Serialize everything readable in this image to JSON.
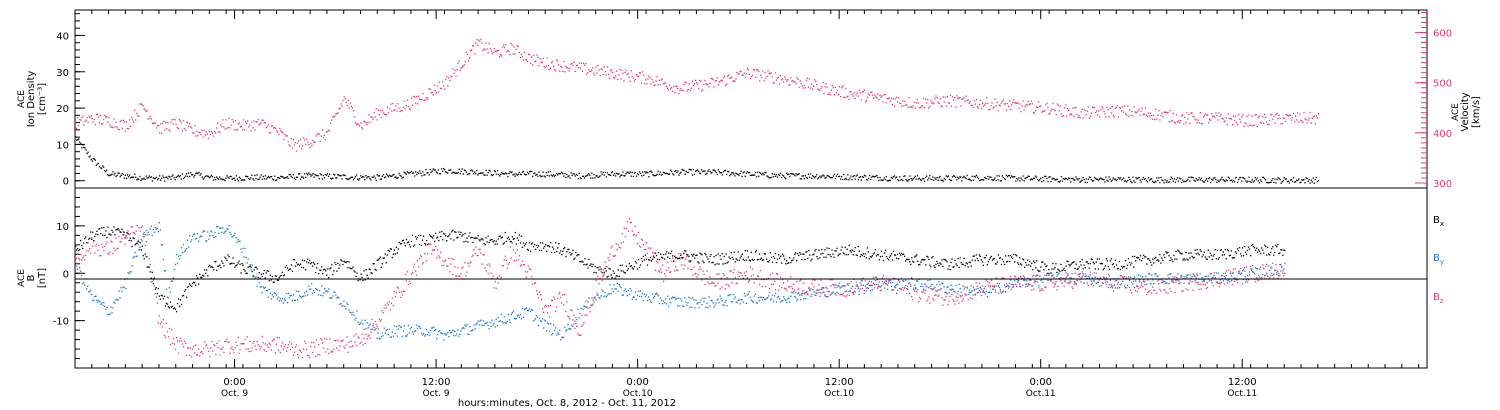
{
  "chart_data": [
    {
      "type": "scatter",
      "panel": "top",
      "ylabel_left": [
        "ACE",
        "Ion Density",
        "[cm⁻³]"
      ],
      "ylabel_right": [
        "ACE",
        "Velocity",
        "[km/s]"
      ],
      "ylim_left": [
        -2,
        47
      ],
      "ylim_right": [
        290,
        645
      ],
      "yticks_left": [
        "0",
        "10",
        "20",
        "30",
        "40"
      ],
      "yticks_right": [
        "300",
        "400",
        "500",
        "600"
      ],
      "xlim_hours": [
        0,
        80.5
      ],
      "series": [
        {
          "name": "Ion Density",
          "axis": "left",
          "color": "#000000",
          "x": [
            0,
            1,
            2,
            3,
            4,
            5,
            6,
            7,
            8,
            9,
            10,
            12,
            14,
            16,
            18,
            20,
            22,
            24,
            26,
            28,
            30,
            32,
            34,
            36,
            38,
            40,
            42,
            44,
            46,
            48,
            50,
            52,
            54,
            56,
            58,
            60,
            62,
            64,
            66,
            68,
            70,
            72,
            74
          ],
          "y": [
            12,
            6,
            2,
            1.5,
            1,
            0.8,
            1,
            2,
            1,
            0.8,
            1,
            1,
            1.5,
            1.2,
            1,
            2,
            3,
            2.5,
            2,
            2,
            1.5,
            2,
            2,
            2.5,
            2.5,
            2,
            1.5,
            1.5,
            1.2,
            1,
            0.8,
            0.8,
            1,
            0.8,
            0.6,
            0.5,
            0.5,
            0.4,
            0.4,
            0.4,
            0.4,
            0.3,
            0.3
          ]
        },
        {
          "name": "Velocity",
          "axis": "right",
          "color": "#e8386b",
          "x": [
            0,
            1,
            2,
            3,
            4,
            5,
            6,
            7,
            8,
            9,
            10,
            11,
            12,
            13,
            14,
            15,
            16,
            17,
            18,
            20,
            21,
            22,
            23,
            24,
            25,
            26,
            27,
            28,
            30,
            32,
            34,
            36,
            38,
            40,
            42,
            44,
            46,
            48,
            50,
            52,
            54,
            56,
            58,
            60,
            62,
            64,
            66,
            68,
            70,
            72,
            74
          ],
          "y": [
            420,
            430,
            425,
            415,
            455,
            410,
            420,
            405,
            400,
            420,
            415,
            420,
            405,
            375,
            385,
            400,
            470,
            415,
            440,
            460,
            480,
            500,
            540,
            580,
            560,
            570,
            550,
            540,
            530,
            520,
            510,
            490,
            500,
            520,
            510,
            495,
            480,
            470,
            460,
            465,
            460,
            455,
            450,
            440,
            445,
            440,
            430,
            430,
            425,
            430,
            430
          ]
        }
      ]
    },
    {
      "type": "scatter",
      "panel": "bottom",
      "ylabel_left": [
        "ACE",
        "B",
        "[nT]"
      ],
      "ylim": [
        -20,
        18
      ],
      "yticks": [
        "10",
        "0",
        "-10"
      ],
      "xlim_hours": [
        0,
        80.5
      ],
      "zero_line": true,
      "x_tick_labels": [
        {
          "hour": 9.5,
          "time": "0:00",
          "day": "Oct. 9"
        },
        {
          "hour": 21.5,
          "time": "12:00",
          "day": "Oct. 9"
        },
        {
          "hour": 33.5,
          "time": "0:00",
          "day": "Oct.10"
        },
        {
          "hour": 45.5,
          "time": "12:00",
          "day": "Oct.10"
        },
        {
          "hour": 57.5,
          "time": "0:00",
          "day": "Oct.11"
        },
        {
          "hour": 69.5,
          "time": "12:00",
          "day": "Oct.11"
        }
      ],
      "xlabel": "hours:minutes, Oct.  8, 2012 - Oct. 11, 2012",
      "series": [
        {
          "name": "Bx",
          "color": "#000000",
          "x": [
            0,
            1,
            2,
            3,
            4,
            5,
            6,
            7,
            8,
            9,
            10,
            11,
            12,
            13,
            14,
            15,
            16,
            17,
            18,
            19,
            20,
            21,
            22,
            23,
            24,
            25,
            26,
            27,
            28,
            29,
            30,
            31,
            32,
            34,
            36,
            38,
            40,
            42,
            44,
            46,
            48,
            50,
            52,
            54,
            56,
            58,
            60,
            62,
            64,
            66,
            68,
            70,
            72
          ],
          "y": [
            5,
            8,
            9,
            8,
            5,
            -5,
            -7,
            -2,
            1,
            3,
            1,
            0,
            -1,
            2,
            2,
            0,
            3,
            -1,
            2,
            5,
            7,
            7,
            8,
            8,
            7,
            7,
            8,
            6,
            6,
            5,
            3,
            1,
            0,
            3,
            4,
            3,
            4,
            3,
            4,
            5,
            4,
            3,
            2,
            3,
            3,
            1,
            2,
            2,
            3,
            4,
            4,
            5,
            5
          ]
        },
        {
          "name": "By",
          "color": "#1a78d4",
          "x": [
            0,
            1,
            2,
            3,
            4,
            5,
            5.5,
            6,
            7,
            8,
            9,
            10,
            11,
            12,
            13,
            14,
            15,
            16,
            17,
            18,
            19,
            20,
            21,
            22,
            23,
            24,
            25,
            26,
            27,
            28,
            29,
            30,
            31,
            32,
            34,
            36,
            38,
            40,
            42,
            44,
            46,
            48,
            50,
            52,
            54,
            56,
            58,
            60,
            62,
            64,
            66,
            68,
            70,
            72
          ],
          "y": [
            2,
            -5,
            -8,
            -2,
            8,
            10,
            -5,
            3,
            8,
            8,
            10,
            5,
            -3,
            -5,
            -5,
            -3,
            -4,
            -6,
            -10,
            -13,
            -12,
            -12,
            -12,
            -13,
            -12,
            -11,
            -10,
            -9,
            -8,
            -11,
            -13,
            -8,
            -5,
            -3,
            -5,
            -6,
            -6,
            -5,
            -5,
            -4,
            -3,
            -2,
            -2,
            -3,
            -4,
            -2,
            -1,
            -1,
            -2,
            -1,
            -1,
            -1,
            0,
            1
          ]
        },
        {
          "name": "Bz",
          "color": "#e8386b",
          "x": [
            0,
            1,
            2,
            3,
            4,
            5,
            6,
            7,
            8,
            9,
            10,
            11,
            12,
            13,
            14,
            15,
            16,
            17,
            18,
            19,
            20,
            21,
            22,
            23,
            24,
            25,
            26,
            27,
            28,
            29,
            30,
            31,
            32,
            33,
            34,
            35,
            36,
            38,
            40,
            42,
            44,
            46,
            48,
            50,
            52,
            54,
            56,
            58,
            60,
            62,
            64,
            66,
            68,
            70,
            72
          ],
          "y": [
            3,
            6,
            5,
            8,
            9,
            -10,
            -15,
            -16,
            -16,
            -15,
            -15,
            -15,
            -15,
            -16,
            -16,
            -15,
            -15,
            -14,
            -10,
            -5,
            0,
            5,
            3,
            0,
            5,
            -2,
            5,
            0,
            -8,
            -5,
            -12,
            -3,
            5,
            10,
            5,
            0,
            3,
            -2,
            0,
            -2,
            -3,
            -3,
            -2,
            -4,
            -5,
            -3,
            -2,
            -2,
            -1,
            -2,
            -3,
            -2,
            -1,
            0,
            1
          ]
        }
      ]
    }
  ],
  "legend": {
    "bx_base": "B",
    "bx_sub": "x",
    "by_base": "B",
    "by_sub": "y",
    "bz_base": "B",
    "bz_sub": "z"
  }
}
